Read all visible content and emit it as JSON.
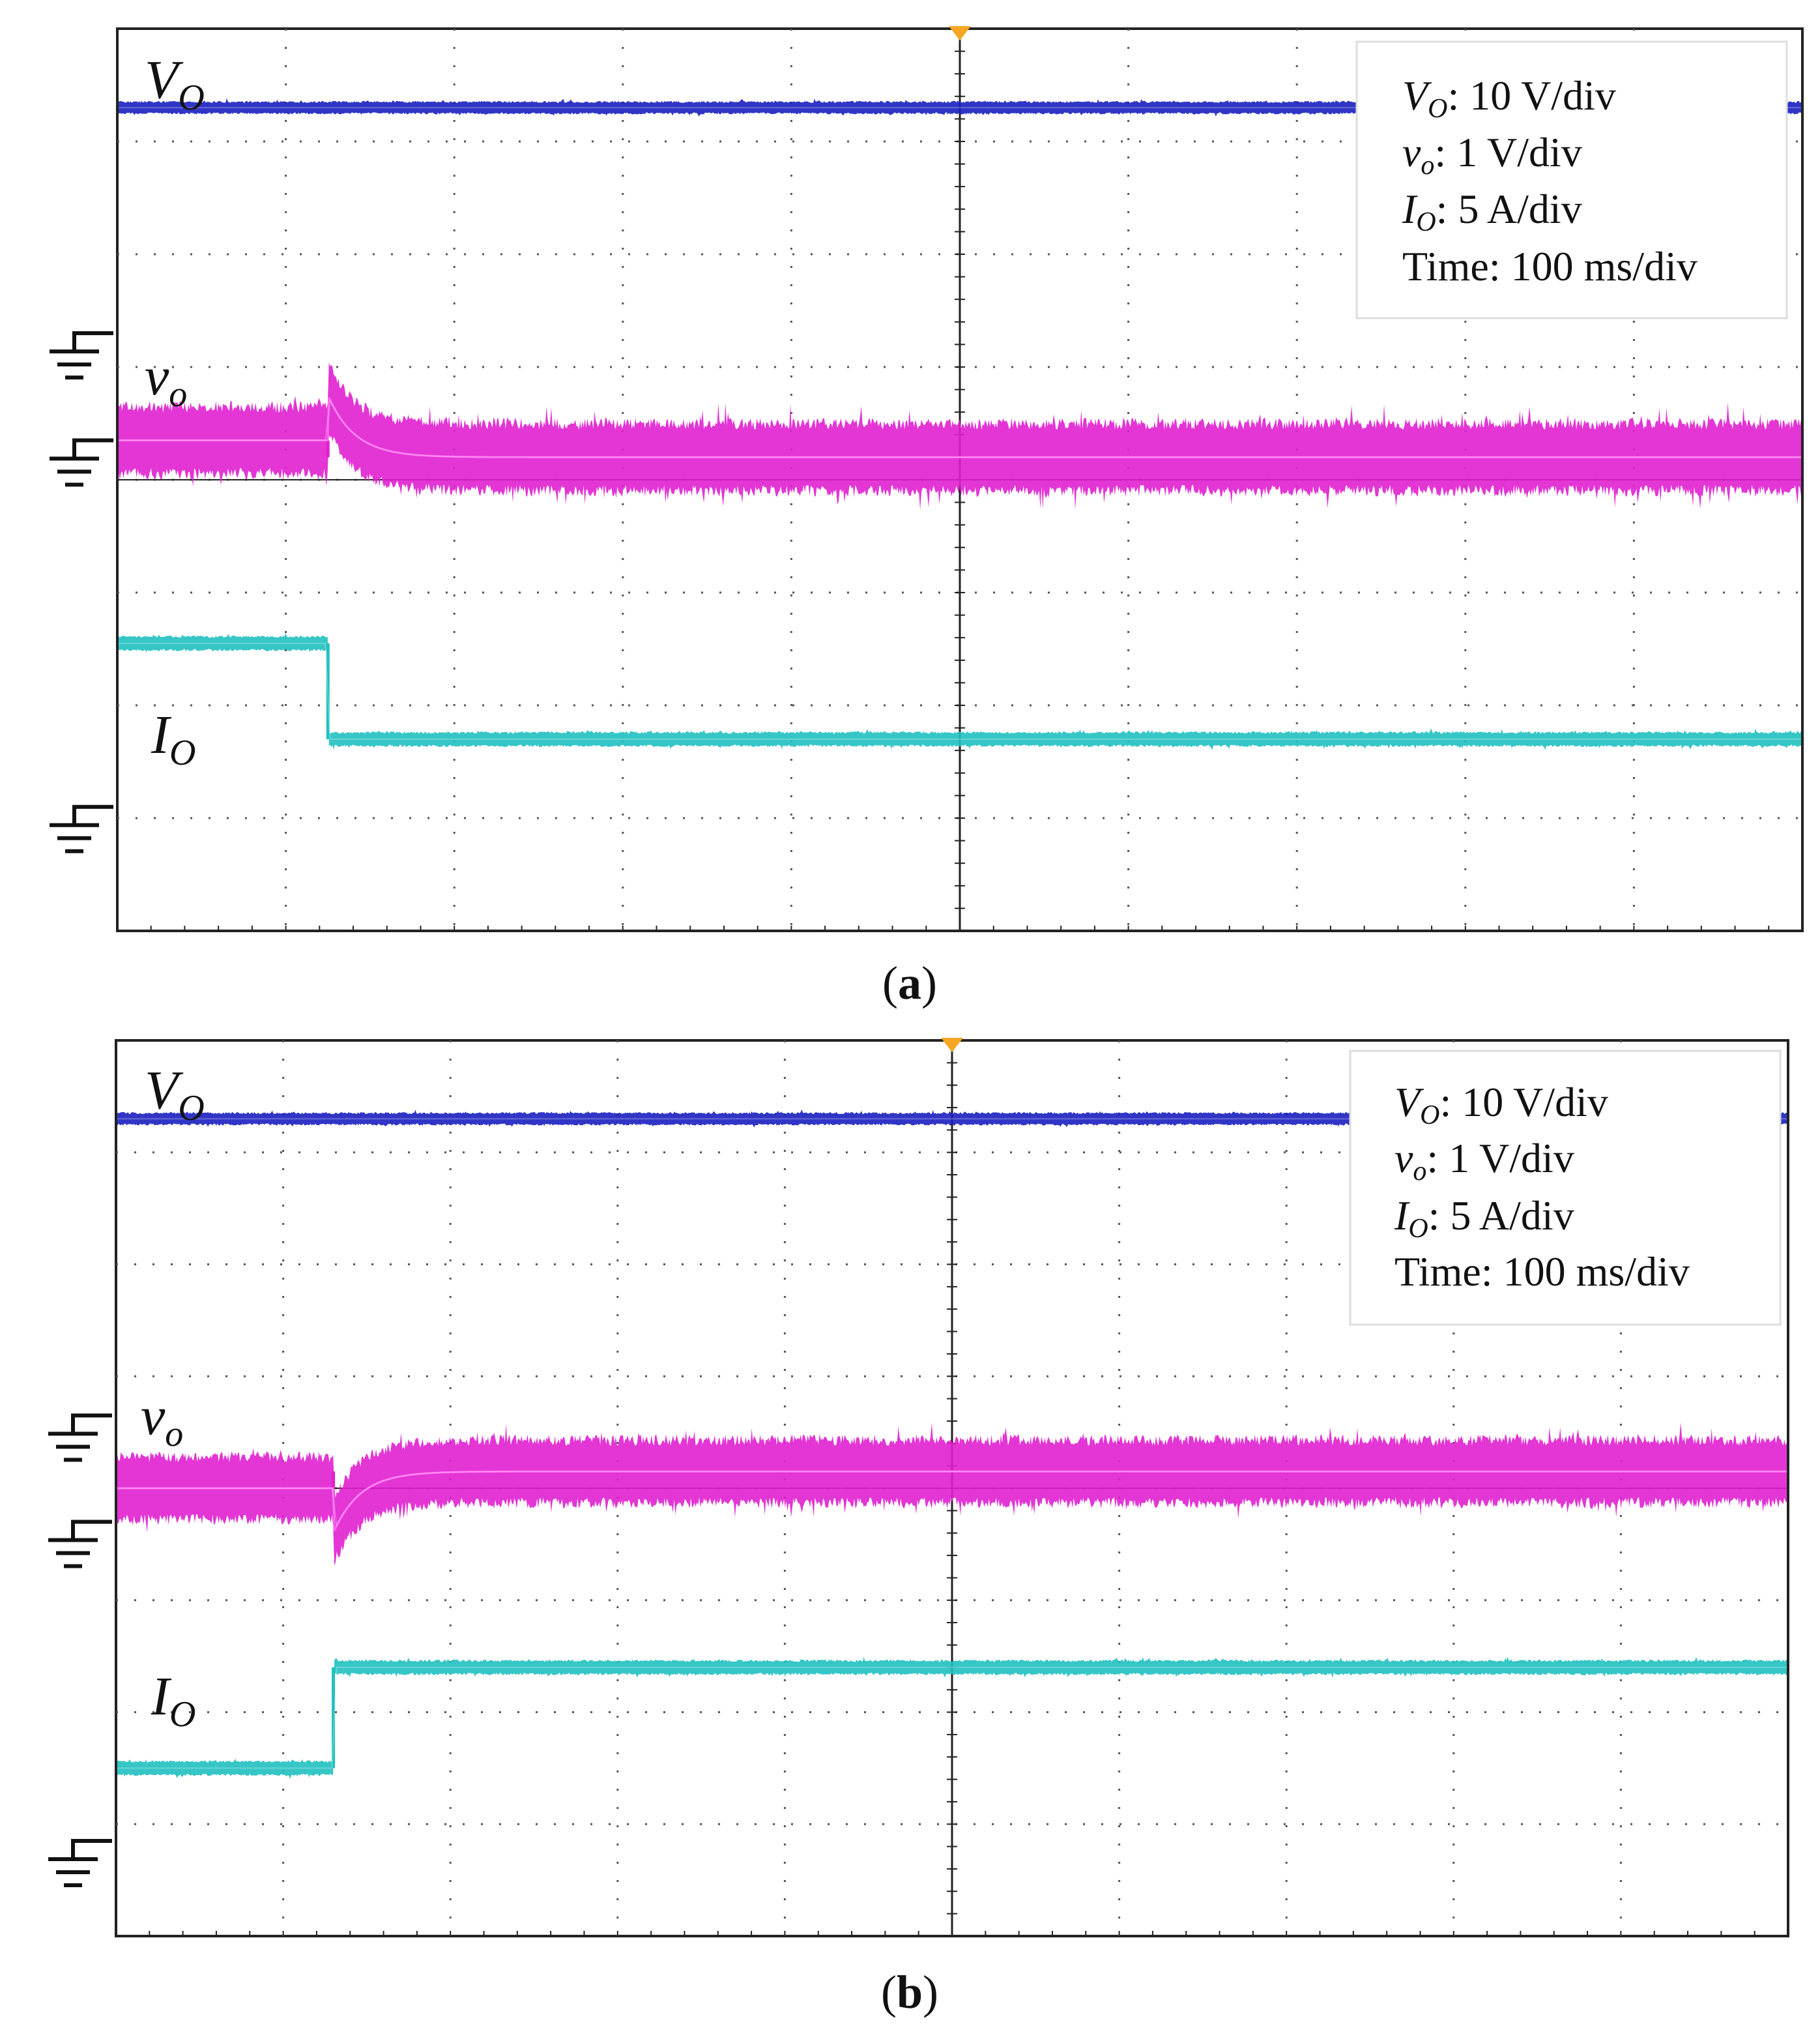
{
  "chart_data": [
    {
      "type": "line",
      "panel_label": "a",
      "divisions": {
        "x": 10,
        "y": 8
      },
      "settings": {
        "vo_dc": "10 V/div",
        "vo_ac": "1 V/div",
        "io": "5 A/div",
        "time": "Time: 100 ms/div"
      },
      "channel_labels": {
        "vo_dc": "V",
        "vo_ac": "v",
        "io": "I",
        "subscript_o": "O",
        "subscript_v": "o"
      },
      "step_time_div": 1.25,
      "series": [
        {
          "key": "vo_dc",
          "color": "#1a1fc0",
          "level_div_before": 7.3,
          "level_div_after": 7.3,
          "noise_div": 0.06,
          "overshoot_div": 0
        },
        {
          "key": "vo_ac",
          "color": "#e020d0",
          "level_div_before": 4.35,
          "level_div_after": 4.2,
          "noise_div": 0.35,
          "overshoot_div": 0.55,
          "dip_div": -0.55
        },
        {
          "key": "io",
          "color": "#20c0c0",
          "level_div_before": 2.55,
          "level_div_after": 1.7,
          "noise_div": 0.07,
          "overshoot_div": 0
        }
      ],
      "ground_markers_div": [
        5.3,
        4.35,
        1.1
      ]
    },
    {
      "type": "line",
      "panel_label": "b",
      "divisions": {
        "x": 10,
        "y": 8
      },
      "settings": {
        "vo_dc": "10 V/div",
        "vo_ac": "1 V/div",
        "io": "5 A/div",
        "time": "Time: 100 ms/div"
      },
      "channel_labels": {
        "vo_dc": "V",
        "vo_ac": "v",
        "io": "I",
        "subscript_o": "O",
        "subscript_v": "o"
      },
      "step_time_div": 1.3,
      "series": [
        {
          "key": "vo_dc",
          "color": "#1a1fc0",
          "level_div_before": 7.3,
          "level_div_after": 7.3,
          "noise_div": 0.06,
          "overshoot_div": 0
        },
        {
          "key": "vo_ac",
          "color": "#e020d0",
          "level_div_before": 4.0,
          "level_div_after": 4.15,
          "noise_div": 0.33,
          "overshoot_div": -0.55,
          "dip_div": 0.45
        },
        {
          "key": "io",
          "color": "#20c0c0",
          "level_div_before": 1.5,
          "level_div_after": 2.4,
          "noise_div": 0.07,
          "overshoot_div": 0
        }
      ],
      "ground_markers_div": [
        4.65,
        3.7,
        0.85
      ]
    }
  ]
}
